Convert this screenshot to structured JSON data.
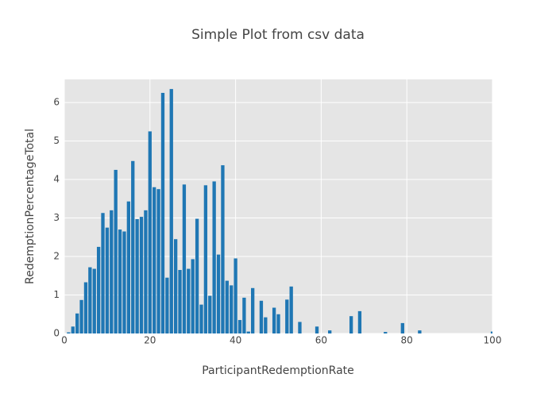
{
  "chart_data": {
    "type": "bar",
    "title": "Simple Plot from csv data",
    "x_label": "ParticipantRedemptionRate",
    "y_label": "RedemptionPercentageTotal",
    "x": [
      1,
      2,
      3,
      4,
      5,
      6,
      7,
      8,
      9,
      10,
      11,
      12,
      13,
      14,
      15,
      16,
      17,
      18,
      19,
      20,
      21,
      22,
      23,
      24,
      25,
      26,
      27,
      28,
      29,
      30,
      31,
      32,
      33,
      34,
      35,
      36,
      37,
      38,
      39,
      40,
      41,
      42,
      43,
      44,
      46,
      47,
      49,
      50,
      52,
      53,
      55,
      59,
      62,
      67,
      69,
      75,
      79,
      83,
      100
    ],
    "values": [
      0.03,
      0.18,
      0.52,
      0.87,
      1.33,
      1.72,
      1.68,
      2.25,
      3.13,
      2.75,
      3.2,
      4.25,
      2.7,
      2.65,
      3.43,
      4.48,
      2.97,
      3.03,
      3.2,
      5.25,
      3.8,
      3.75,
      6.25,
      1.45,
      6.35,
      2.45,
      1.65,
      3.87,
      1.68,
      1.93,
      2.98,
      0.75,
      3.85,
      0.98,
      3.95,
      2.05,
      4.37,
      1.37,
      1.25,
      1.95,
      0.35,
      0.93,
      0.05,
      1.18,
      0.85,
      0.42,
      0.67,
      0.5,
      0.88,
      1.22,
      0.3,
      0.18,
      0.08,
      0.45,
      0.58,
      0.04,
      0.27,
      0.08,
      0.05
    ],
    "color": "#1f77b4",
    "xlim": [
      0,
      100
    ],
    "xticks": [
      0,
      20,
      40,
      60,
      80,
      100
    ],
    "ylim": [
      0,
      6.6
    ],
    "yticks": [
      0,
      1,
      2,
      3,
      4,
      5,
      6
    ],
    "grid": true
  }
}
